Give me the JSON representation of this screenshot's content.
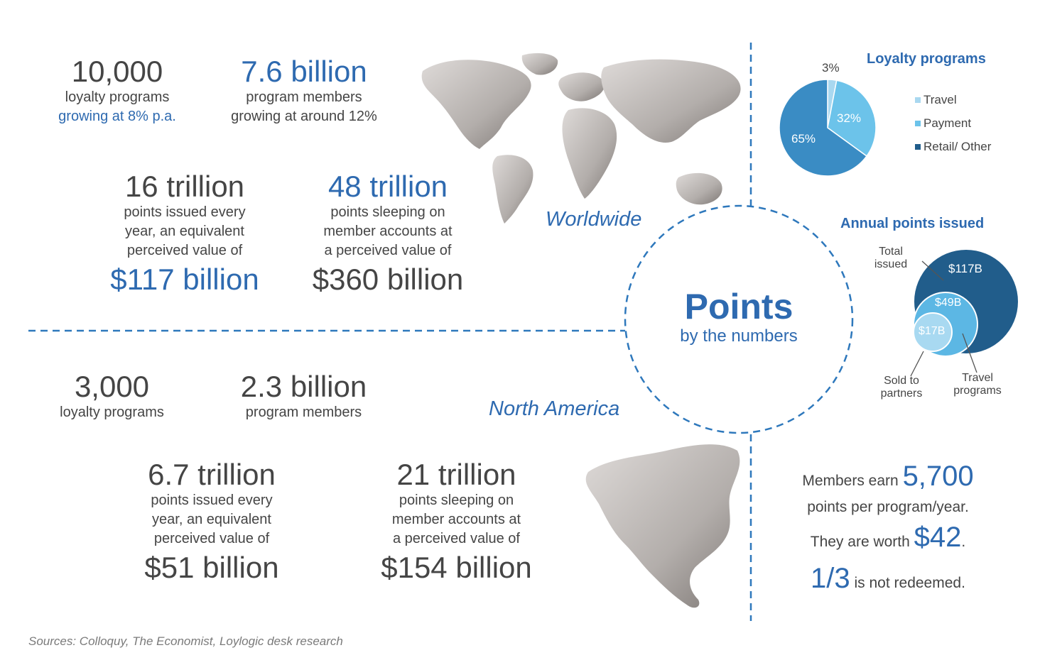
{
  "worldwide": {
    "region_label": "Worldwide",
    "stats": [
      {
        "value": "10,000",
        "lines": [
          "loyalty programs",
          "growing at 8% p.a."
        ]
      },
      {
        "value": "7.6 billion",
        "lines": [
          "program members",
          "growing at around 12%"
        ]
      },
      {
        "value": "16 trillion",
        "lines": [
          "points issued every",
          "year, an equivalent",
          "perceived value of"
        ],
        "extra": "$117 billion"
      },
      {
        "value": "48 trillion",
        "lines": [
          "points sleeping on",
          "member accounts at",
          "a perceived value of"
        ],
        "extra": "$360 billion"
      }
    ]
  },
  "north_america": {
    "region_label": "North America",
    "stats": [
      {
        "value": "3,000",
        "lines": [
          "loyalty programs"
        ]
      },
      {
        "value": "2.3 billion",
        "lines": [
          "program members"
        ]
      },
      {
        "value": "6.7 trillion",
        "lines": [
          "points issued every",
          "year, an equivalent",
          "perceived value of"
        ],
        "extra": "$51 billion"
      },
      {
        "value": "21 trillion",
        "lines": [
          "points sleeping on",
          "member accounts at",
          "a perceived value of"
        ],
        "extra": "$154 billion"
      }
    ]
  },
  "center": {
    "title": "Points",
    "subtitle": "by the numbers"
  },
  "loyalty_pie": {
    "title": "Loyalty programs",
    "slices": [
      {
        "label": "Travel",
        "value": 3,
        "display": "3%",
        "color": "#a9d8f0"
      },
      {
        "label": "Payment",
        "value": 32,
        "display": "32%",
        "color": "#6cc3ea"
      },
      {
        "label": "Retail/ Other",
        "value": 65,
        "display": "65%",
        "color": "#3a8cc4"
      }
    ]
  },
  "annual_points": {
    "title": "Annual points issued",
    "bubbles": [
      {
        "label": "$117B",
        "value": 117,
        "color": "#215d8b"
      },
      {
        "label": "$49B",
        "value": 49,
        "color": "#5cb7e4"
      },
      {
        "label": "$17B",
        "value": 17,
        "color": "#a8d9f1"
      }
    ],
    "callouts": {
      "total": [
        "Total",
        "issued"
      ],
      "sold": [
        "Sold to",
        "partners"
      ],
      "travel": [
        "Travel",
        "programs"
      ]
    }
  },
  "members": {
    "earn_prefix": "Members earn",
    "earn_value": "5,700",
    "earn_suffix": "points per program/year.",
    "worth_prefix": "They are worth",
    "worth_value": "$42",
    "worth_suffix": ".",
    "unredeemed_value": "1/3",
    "unredeemed_suffix": "is not redeemed."
  },
  "sources": "Sources: Colloquy, The Economist, Loylogic desk research"
}
